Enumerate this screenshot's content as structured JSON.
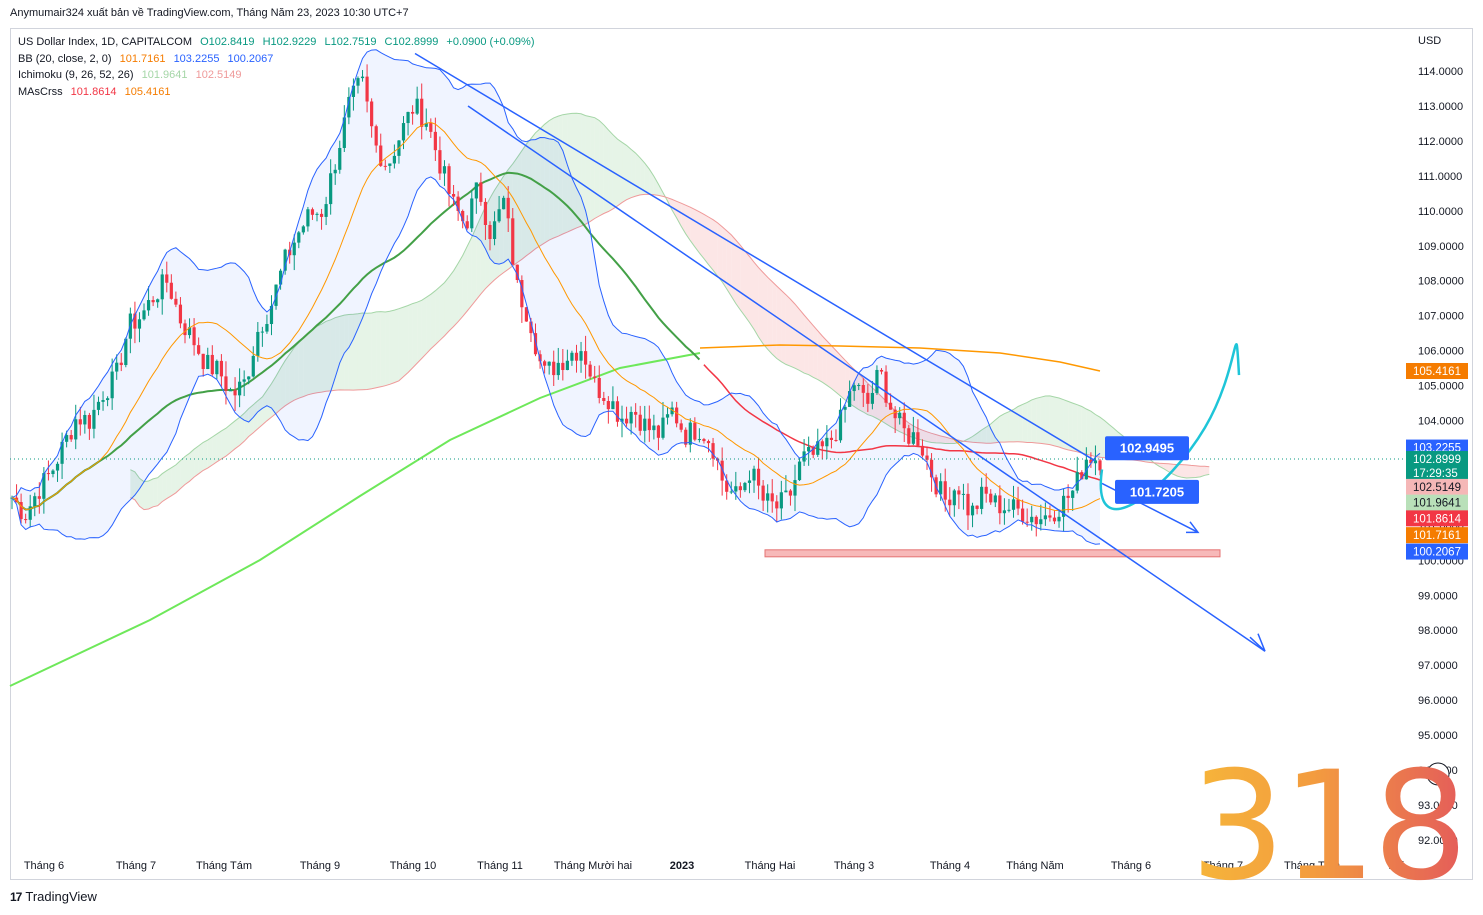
{
  "header": {
    "text": "Anymumair324 xuất bản về TradingView.com, Tháng Năm 23, 2023 10:30 UTC+7"
  },
  "legend": {
    "symbol": "US Dollar Index, 1D, CAPITALCOM",
    "ohlc": {
      "o": "O102.8419",
      "h": "H102.9229",
      "l": "L102.7519",
      "c": "C102.8999",
      "chg": "+0.0900 (+0.09%)"
    },
    "bb": {
      "label": "BB (20, close, 2, 0)",
      "basis": "101.7161",
      "upper": "103.2255",
      "lower": "100.2067"
    },
    "ichimoku": {
      "label": "Ichimoku (9, 26, 52, 26)",
      "v1": "101.9641",
      "v2": "102.5149"
    },
    "mas": {
      "label": "MAsCrss",
      "v1": "101.8614",
      "v2": "105.4161"
    }
  },
  "currency": "USD",
  "annotations": {
    "box_high": "102.9495",
    "box_low": "101.7205"
  },
  "price_badges": [
    {
      "text": "105.4161",
      "price": 105.4161,
      "color": "#f57c00"
    },
    {
      "text": "103.2255",
      "price": 103.2255,
      "color": "#2962ff"
    },
    {
      "text": "102.8999",
      "price": 102.8999,
      "color": "#089981"
    },
    {
      "text": "17:29:35",
      "price": 102.5,
      "color": "#089981"
    },
    {
      "text": "102.5149",
      "price": 102.1,
      "color": "#f5b7b7",
      "dark": true
    },
    {
      "text": "101.9641",
      "price": 101.65,
      "color": "#b9e0b9",
      "dark": true
    },
    {
      "text": "101.8614",
      "price": 101.2,
      "color": "#f23645"
    },
    {
      "text": "101.7161",
      "price": 100.72,
      "color": "#f57c00"
    },
    {
      "text": "100.2067",
      "price": 100.25,
      "color": "#2962ff"
    }
  ],
  "watermark": "318",
  "footer": {
    "brand": "TradingView",
    "mark": "17"
  },
  "colors": {
    "up": "#089981",
    "down": "#f23645",
    "bb": "#2962ff",
    "ma_short": "#f23645",
    "ma_long": "#ff9800",
    "ema200": "#6ee85a"
  },
  "chart_data": {
    "type": "candlestick",
    "title": "US Dollar Index, 1D, CAPITALCOM",
    "ylabel": "USD",
    "ylim": [
      91.5,
      115
    ],
    "y_ticks": [
      "114.0000",
      "113.0000",
      "112.0000",
      "111.0000",
      "110.0000",
      "109.0000",
      "108.0000",
      "107.0000",
      "106.0000",
      "105.0000",
      "104.0000",
      "103.0000",
      "102.0000",
      "101.0000",
      "100.0000",
      "99.0000",
      "98.0000",
      "97.0000",
      "96.0000",
      "95.0000",
      "94.0000",
      "93.0000",
      "92.0000"
    ],
    "x_ticks": [
      "Tháng 6",
      "Tháng 7",
      "Tháng Tám",
      "Tháng 9",
      "Tháng 10",
      "Tháng 11",
      "Tháng Mười hai",
      "2023",
      "Tháng Hai",
      "Tháng 3",
      "Tháng 4",
      "Tháng Năm",
      "Tháng 6",
      "Tháng 7",
      "Tháng Tám",
      "Thá"
    ],
    "close_path": [
      101.8,
      101.3,
      102.0,
      102.5,
      103.3,
      104.1,
      104.0,
      104.8,
      105.2,
      106.7,
      107.0,
      107.6,
      108.0,
      106.9,
      106.3,
      105.6,
      105.4,
      104.7,
      105.1,
      106.6,
      107.3,
      108.5,
      109.3,
      109.9,
      110.0,
      111.5,
      113.0,
      113.7,
      111.9,
      111.3,
      112.2,
      113.0,
      112.6,
      111.4,
      110.2,
      109.6,
      110.7,
      109.3,
      110.3,
      107.8,
      106.9,
      105.3,
      105.6,
      105.9,
      106.1,
      105.0,
      104.7,
      104.1,
      104.3,
      103.8,
      103.6,
      104.3,
      103.6,
      103.8,
      103.4,
      102.1,
      101.8,
      102.6,
      101.7,
      101.5,
      101.8,
      102.9,
      103.0,
      103.3,
      104.0,
      105.1,
      104.4,
      105.4,
      104.2,
      103.6,
      103.5,
      102.5,
      101.7,
      102.2,
      101.3,
      101.9,
      101.6,
      101.5,
      101.4,
      101.2,
      101.3,
      101.6,
      102.0,
      103.0,
      102.9
    ]
  }
}
